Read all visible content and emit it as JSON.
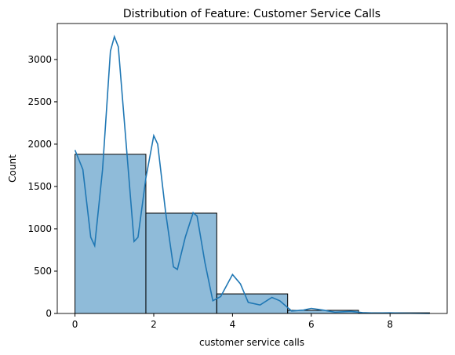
{
  "chart_data": {
    "type": "histogram",
    "title": "Distribution of Feature: Customer Service Calls",
    "xlabel": "customer service calls",
    "ylabel": "Count",
    "bins": [
      0,
      1.8,
      3.6,
      5.4,
      7.2,
      9
    ],
    "counts": [
      1880,
      1185,
      231,
      37,
      8
    ],
    "color": "#1f77b4",
    "alpha": 0.5,
    "edgecolor": "#000000",
    "kde": {
      "color": "#1f77b4",
      "x": [
        0,
        0.2,
        0.4,
        0.5,
        0.7,
        0.9,
        1.0,
        1.1,
        1.3,
        1.5,
        1.6,
        1.8,
        2.0,
        2.1,
        2.3,
        2.5,
        2.6,
        2.8,
        3.0,
        3.1,
        3.3,
        3.5,
        3.7,
        4.0,
        4.2,
        4.4,
        4.7,
        5.0,
        5.2,
        5.5,
        5.8,
        6.0,
        6.3,
        6.6,
        7.0,
        7.3,
        7.6,
        8.0,
        8.5,
        9.0
      ],
      "values": [
        1930,
        1700,
        900,
        800,
        1700,
        3100,
        3270,
        3150,
        2000,
        850,
        900,
        1600,
        2100,
        2000,
        1200,
        550,
        520,
        900,
        1190,
        1150,
        600,
        150,
        200,
        460,
        350,
        130,
        100,
        190,
        150,
        30,
        40,
        60,
        40,
        15,
        25,
        10,
        5,
        8,
        3,
        1
      ]
    },
    "xlim": [
      -0.45,
      9.45
    ],
    "ylim": [
      0,
      3425
    ],
    "xticks": [
      0,
      2,
      4,
      6,
      8
    ],
    "yticks": [
      0,
      500,
      1000,
      1500,
      2000,
      2500,
      3000
    ]
  }
}
